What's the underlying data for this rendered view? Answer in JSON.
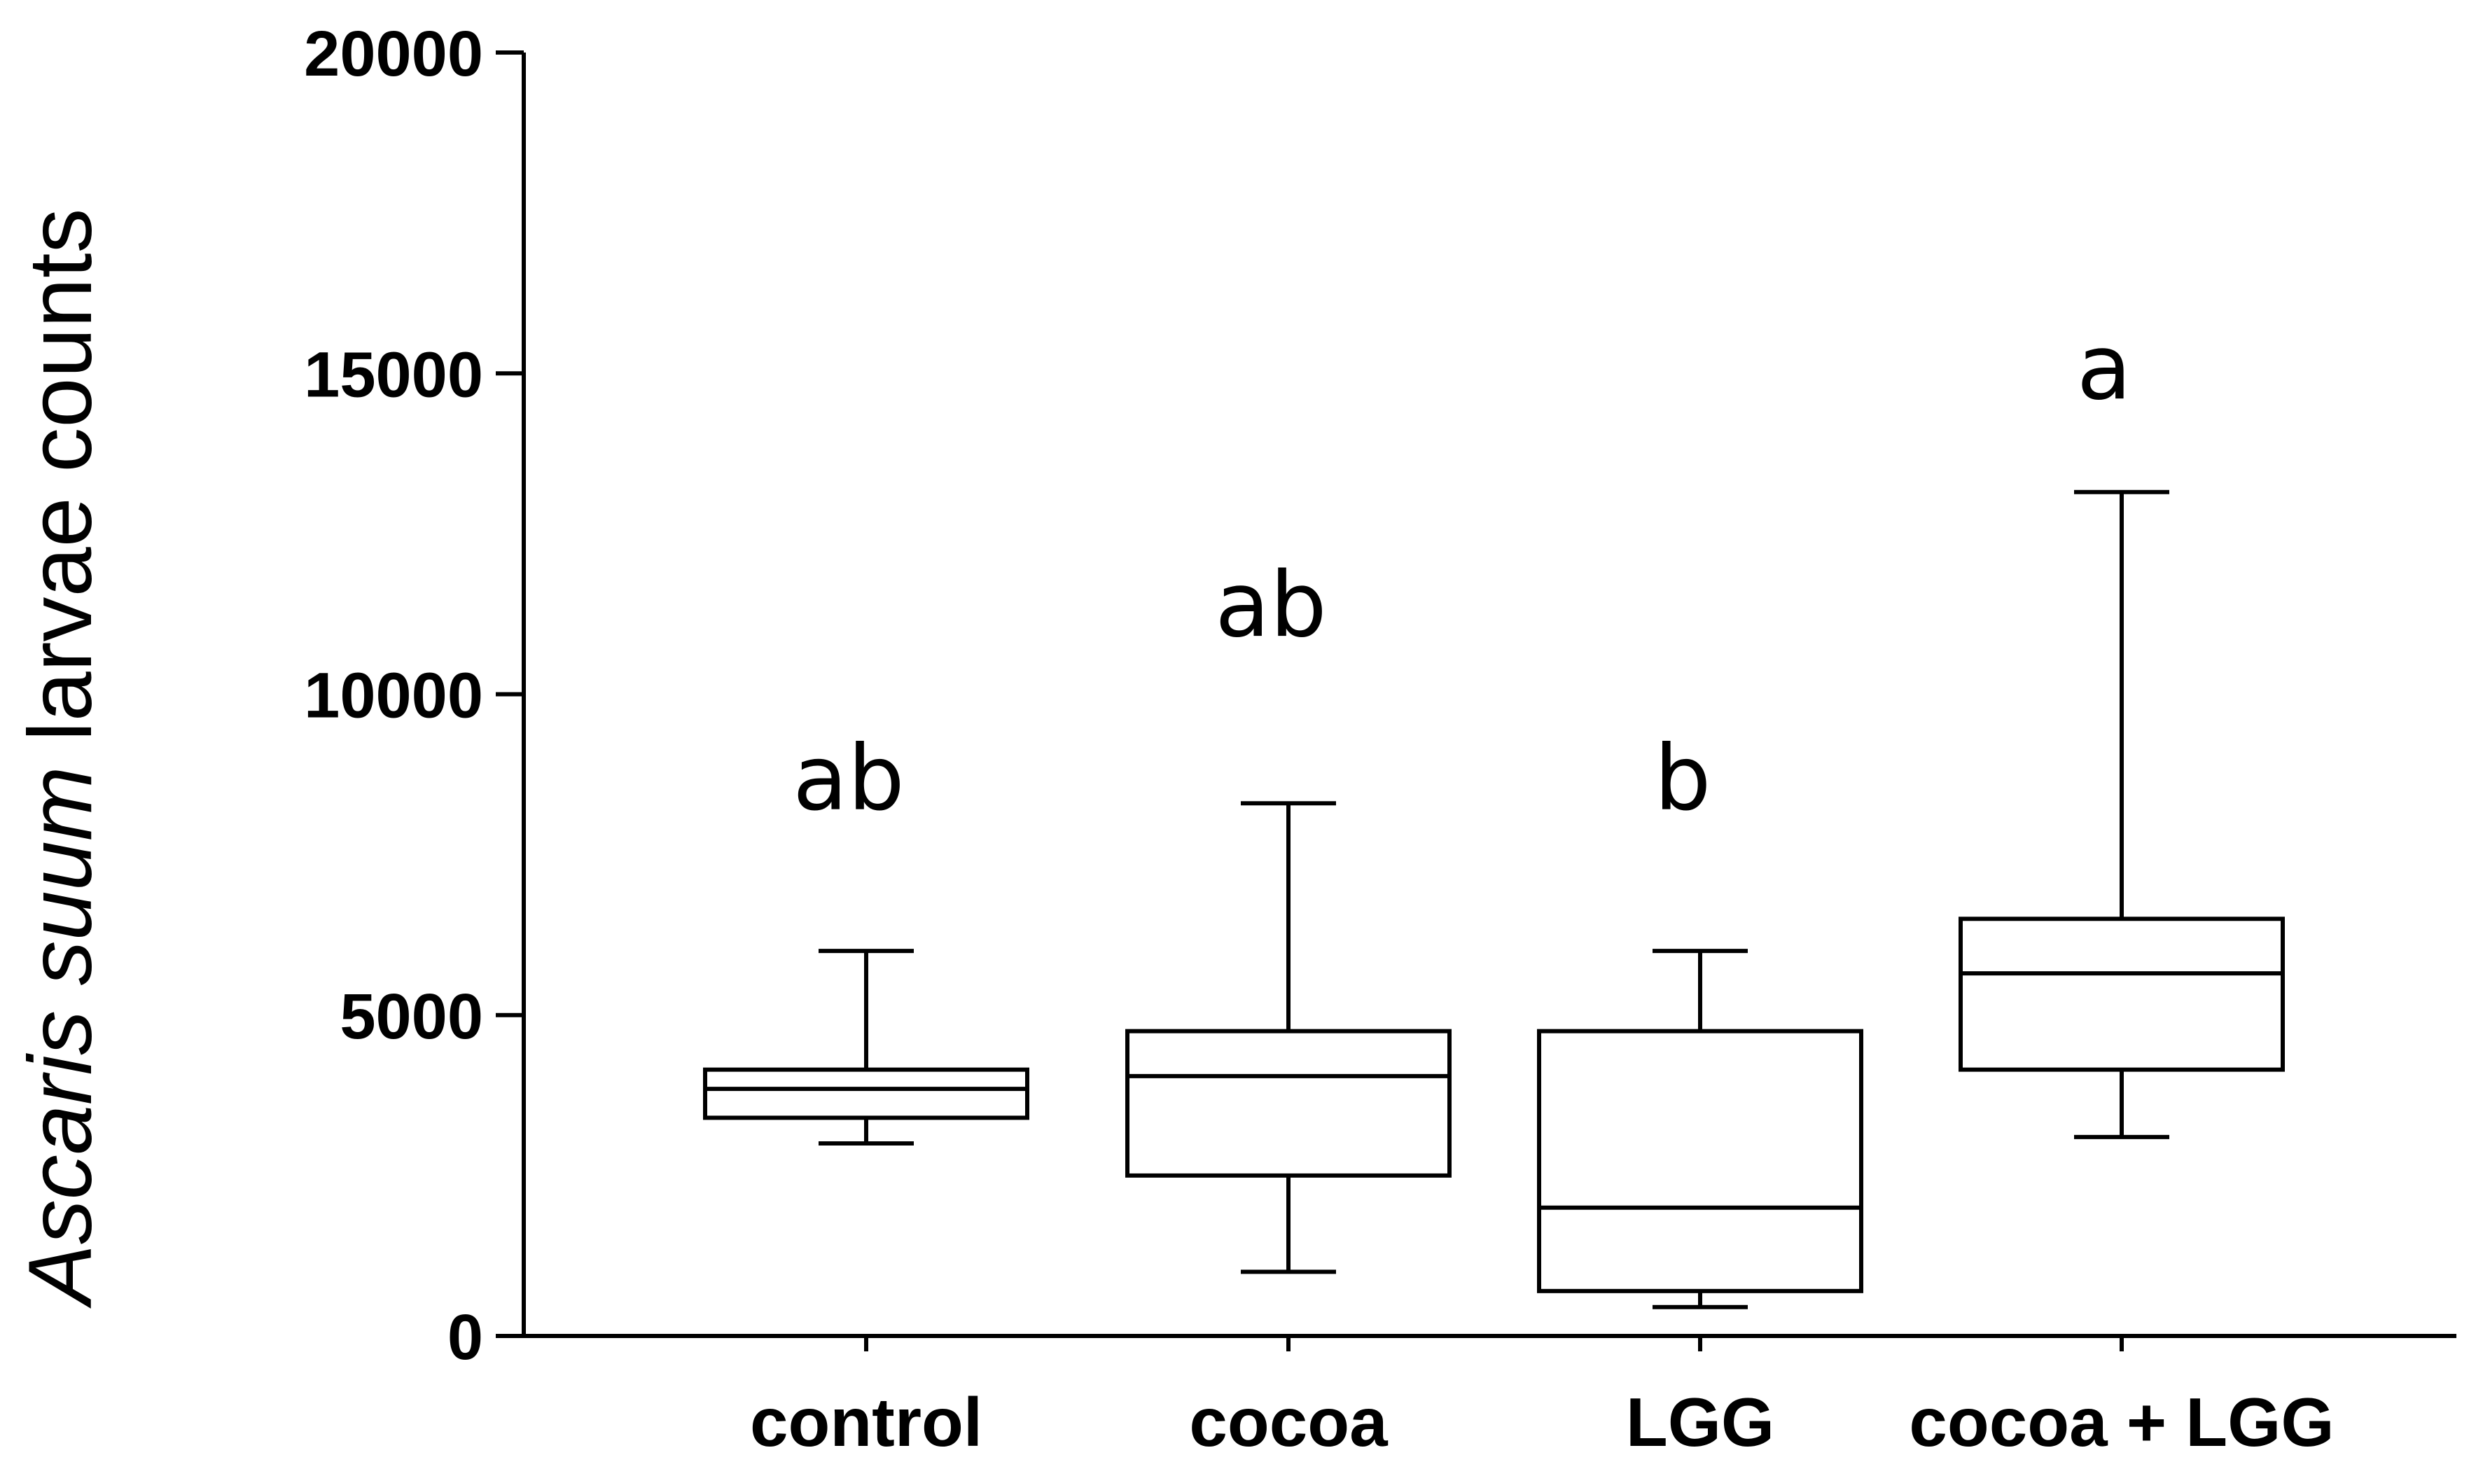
{
  "chart_data": {
    "type": "box",
    "ylabel_italic": "Ascaris suum",
    "ylabel_rest": " larvae counts",
    "ylim": [
      0,
      20000
    ],
    "yticks": [
      0,
      5000,
      10000,
      15000,
      20000
    ],
    "grid": false,
    "categories": [
      "control",
      "cocoa",
      "LGG",
      "cocoa + LGG"
    ],
    "boxes": [
      {
        "category": "control",
        "min": 3000,
        "q1": 3400,
        "median": 3850,
        "q3": 4150,
        "max": 6000,
        "sig": "ab"
      },
      {
        "category": "cocoa",
        "min": 1000,
        "q1": 2500,
        "median": 4050,
        "q3": 4750,
        "max": 8300,
        "sig": "ab"
      },
      {
        "category": "LGG",
        "min": 450,
        "q1": 700,
        "median": 2000,
        "q3": 4750,
        "max": 6000,
        "sig": "b"
      },
      {
        "category": "cocoa + LGG",
        "min": 3100,
        "q1": 4150,
        "median": 5650,
        "q3": 6500,
        "max": 13150,
        "sig": "a"
      }
    ],
    "sig_label_y": [
      8700,
      11400,
      8700,
      15100
    ]
  }
}
